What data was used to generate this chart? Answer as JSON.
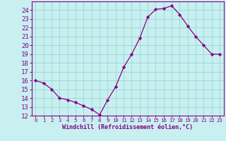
{
  "x": [
    0,
    1,
    2,
    3,
    4,
    5,
    6,
    7,
    8,
    9,
    10,
    11,
    12,
    13,
    14,
    15,
    16,
    17,
    18,
    19,
    20,
    21,
    22,
    23
  ],
  "y": [
    16.0,
    15.7,
    15.0,
    14.0,
    13.8,
    13.5,
    13.1,
    12.7,
    12.1,
    13.8,
    15.3,
    17.5,
    19.0,
    20.8,
    23.2,
    24.1,
    24.2,
    24.5,
    23.5,
    22.2,
    21.0,
    20.0,
    19.0,
    19.0
  ],
  "line_color": "#880088",
  "marker": "D",
  "markersize": 2.2,
  "background_color": "#c8f0f0",
  "grid_color": "#a0d8d8",
  "xlabel": "Windchill (Refroidissement éolien,°C)",
  "ylabel": "",
  "xlim": [
    -0.5,
    23.5
  ],
  "ylim": [
    12,
    25
  ],
  "yticks": [
    12,
    13,
    14,
    15,
    16,
    17,
    18,
    19,
    20,
    21,
    22,
    23,
    24
  ],
  "xticks": [
    0,
    1,
    2,
    3,
    4,
    5,
    6,
    7,
    8,
    9,
    10,
    11,
    12,
    13,
    14,
    15,
    16,
    17,
    18,
    19,
    20,
    21,
    22,
    23
  ],
  "tick_color": "#880088",
  "axis_color": "#880088",
  "title": "",
  "xlabel_fontsize": 6.0,
  "ytick_fontsize": 6.5,
  "xtick_fontsize": 5.2
}
